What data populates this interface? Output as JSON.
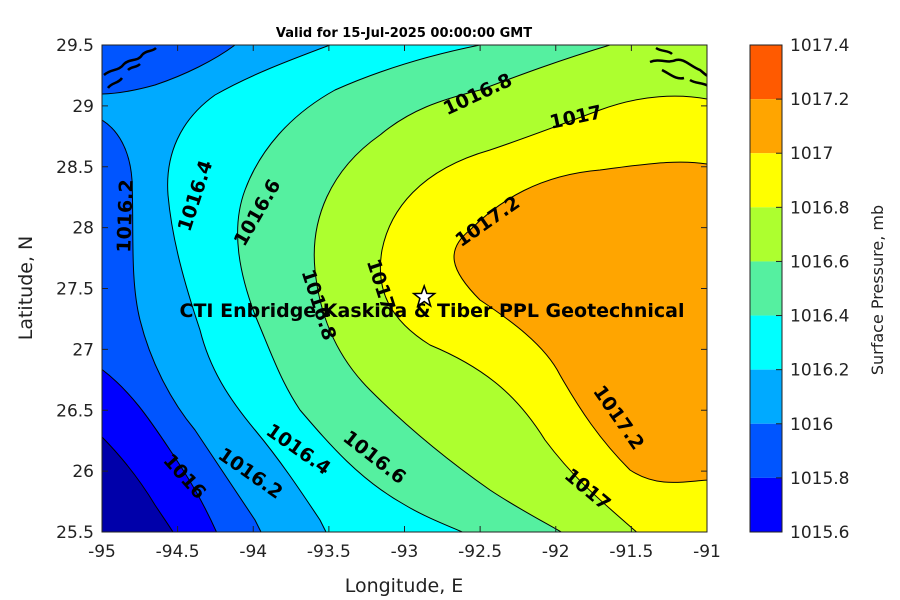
{
  "title": "Valid for 15-Jul-2025 00:00:00 GMT",
  "x_axis": {
    "label": "Longitude, E",
    "ticks": [
      "-95",
      "-94.5",
      "-94",
      "-93.5",
      "-93",
      "-92.5",
      "-92",
      "-91.5",
      "-91"
    ]
  },
  "y_axis": {
    "label": "Latitude, N",
    "ticks": [
      "29.5",
      "29",
      "28.5",
      "28",
      "27.5",
      "27",
      "26.5",
      "26",
      "25.5"
    ]
  },
  "colorbar": {
    "label": "Surface Pressure, mb",
    "ticks": [
      "1017.4",
      "1017.2",
      "1017",
      "1016.8",
      "1016.6",
      "1016.4",
      "1016.2",
      "1016",
      "1015.8",
      "1015.6"
    ],
    "colors": [
      "#ff5a00",
      "#ffa500",
      "#ffff00",
      "#adff2f",
      "#55f0a0",
      "#00ffff",
      "#00aaff",
      "#0055ff",
      "#0000ff",
      "#0000aa"
    ]
  },
  "contour_labels": [
    {
      "text": "1016.8"
    },
    {
      "text": "1017"
    },
    {
      "text": "1016.4"
    },
    {
      "text": "1016.6"
    },
    {
      "text": "1016.2"
    },
    {
      "text": "1017.2"
    },
    {
      "text": "1016.8"
    },
    {
      "text": "1017"
    },
    {
      "text": "1016.4"
    },
    {
      "text": "1016.6"
    },
    {
      "text": "1016.2"
    },
    {
      "text": "1016"
    },
    {
      "text": "1017.2"
    },
    {
      "text": "1017"
    }
  ],
  "site": {
    "label": "CTI Enbridge  Kaskida & Tiber PPL Geotechnical",
    "lon": -92.87,
    "lat": 27.43
  }
}
